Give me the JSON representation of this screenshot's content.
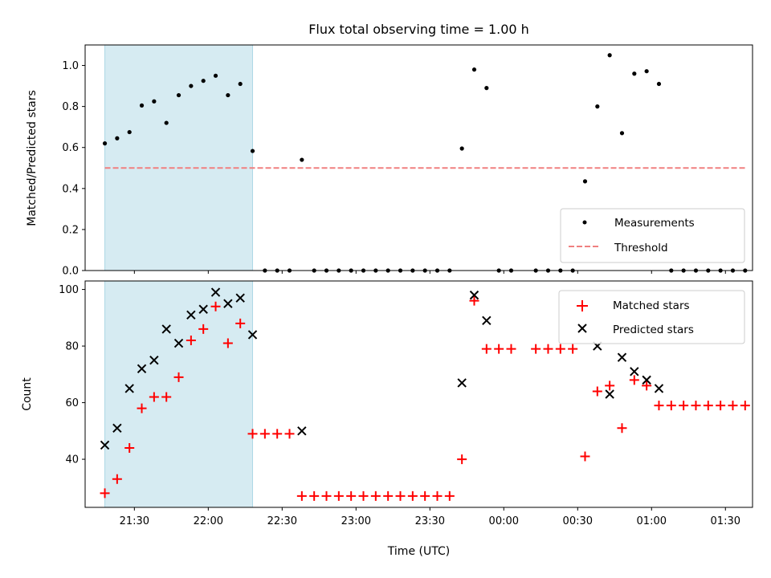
{
  "title": "Flux total observing time = 1.00 h",
  "colors": {
    "shade": "#add8e6",
    "threshold": "#f08080",
    "matched": "#ff0000",
    "predicted": "#000000",
    "measurement": "#000000"
  },
  "chart_data": [
    {
      "type": "scatter",
      "ylabel": "Matched/Predicted stars",
      "ylim": [
        0,
        1.1
      ],
      "xlim": [
        "21:10",
        "01:41"
      ],
      "yticks": [
        "0.0",
        "0.2",
        "0.4",
        "0.6",
        "0.8",
        "1.0"
      ],
      "legend_position": "bottom-right",
      "shaded_interval": [
        "21:18",
        "22:18"
      ],
      "series": [
        {
          "name": "Measurements",
          "points": [
            [
              "21:18",
              0.62
            ],
            [
              "21:23",
              0.645
            ],
            [
              "21:28",
              0.675
            ],
            [
              "21:33",
              0.805
            ],
            [
              "21:38",
              0.825
            ],
            [
              "21:43",
              0.72
            ],
            [
              "21:48",
              0.855
            ],
            [
              "21:53",
              0.9
            ],
            [
              "21:58",
              0.925
            ],
            [
              "22:03",
              0.95
            ],
            [
              "22:08",
              0.855
            ],
            [
              "22:13",
              0.91
            ],
            [
              "22:18",
              0.583
            ],
            [
              "22:23",
              0
            ],
            [
              "22:28",
              0
            ],
            [
              "22:33",
              0
            ],
            [
              "22:38",
              0.54
            ],
            [
              "22:43",
              0
            ],
            [
              "22:48",
              0
            ],
            [
              "22:53",
              0
            ],
            [
              "22:58",
              0
            ],
            [
              "23:03",
              0
            ],
            [
              "23:08",
              0
            ],
            [
              "23:13",
              0
            ],
            [
              "23:18",
              0
            ],
            [
              "23:23",
              0
            ],
            [
              "23:28",
              0
            ],
            [
              "23:33",
              0
            ],
            [
              "23:38",
              0
            ],
            [
              "23:43",
              0.595
            ],
            [
              "23:48",
              0.98
            ],
            [
              "23:53",
              0.89
            ],
            [
              "23:58",
              0
            ],
            [
              "00:03",
              0
            ],
            [
              "00:13",
              0
            ],
            [
              "00:18",
              0
            ],
            [
              "00:23",
              0
            ],
            [
              "00:28",
              0
            ],
            [
              "00:33",
              0.435
            ],
            [
              "00:38",
              0.8
            ],
            [
              "00:43",
              1.05
            ],
            [
              "00:48",
              0.67
            ],
            [
              "00:53",
              0.96
            ],
            [
              "00:58",
              0.972
            ],
            [
              "01:03",
              0.91
            ],
            [
              "01:08",
              0
            ],
            [
              "01:13",
              0
            ],
            [
              "01:18",
              0
            ],
            [
              "01:23",
              0
            ],
            [
              "01:28",
              0
            ],
            [
              "01:33",
              0
            ],
            [
              "01:38",
              0
            ]
          ]
        },
        {
          "name": "Threshold",
          "line": [
            [
              "21:18",
              0.5
            ],
            [
              "01:38",
              0.5
            ]
          ]
        }
      ]
    },
    {
      "type": "scatter",
      "ylabel": "Count",
      "xlabel": "Time (UTC)",
      "ylim": [
        23,
        103
      ],
      "xlim": [
        "21:10",
        "01:41"
      ],
      "yticks": [
        "40",
        "60",
        "80",
        "100"
      ],
      "xticks": [
        "21:30",
        "22:00",
        "22:30",
        "23:00",
        "23:30",
        "00:00",
        "00:30",
        "01:00",
        "01:30"
      ],
      "legend_position": "top-right",
      "shaded_interval": [
        "21:18",
        "22:18"
      ],
      "series": [
        {
          "name": "Matched stars",
          "points": [
            [
              "21:18",
              28
            ],
            [
              "21:23",
              33
            ],
            [
              "21:28",
              44
            ],
            [
              "21:33",
              58
            ],
            [
              "21:38",
              62
            ],
            [
              "21:43",
              62
            ],
            [
              "21:48",
              69
            ],
            [
              "21:53",
              82
            ],
            [
              "21:58",
              86
            ],
            [
              "22:03",
              94
            ],
            [
              "22:08",
              81
            ],
            [
              "22:13",
              88
            ],
            [
              "22:18",
              49
            ],
            [
              "22:23",
              49
            ],
            [
              "22:28",
              49
            ],
            [
              "22:33",
              49
            ],
            [
              "22:38",
              27
            ],
            [
              "22:43",
              27
            ],
            [
              "22:48",
              27
            ],
            [
              "22:53",
              27
            ],
            [
              "22:58",
              27
            ],
            [
              "23:03",
              27
            ],
            [
              "23:08",
              27
            ],
            [
              "23:13",
              27
            ],
            [
              "23:18",
              27
            ],
            [
              "23:23",
              27
            ],
            [
              "23:28",
              27
            ],
            [
              "23:33",
              27
            ],
            [
              "23:38",
              27
            ],
            [
              "23:43",
              40
            ],
            [
              "23:48",
              96
            ],
            [
              "23:53",
              79
            ],
            [
              "23:58",
              79
            ],
            [
              "00:03",
              79
            ],
            [
              "00:13",
              79
            ],
            [
              "00:18",
              79
            ],
            [
              "00:23",
              79
            ],
            [
              "00:28",
              79
            ],
            [
              "00:33",
              41
            ],
            [
              "00:38",
              64
            ],
            [
              "00:43",
              66
            ],
            [
              "00:48",
              51
            ],
            [
              "00:53",
              68
            ],
            [
              "00:58",
              66
            ],
            [
              "01:03",
              59
            ],
            [
              "01:08",
              59
            ],
            [
              "01:13",
              59
            ],
            [
              "01:18",
              59
            ],
            [
              "01:23",
              59
            ],
            [
              "01:28",
              59
            ],
            [
              "01:33",
              59
            ],
            [
              "01:38",
              59
            ]
          ]
        },
        {
          "name": "Predicted stars",
          "points": [
            [
              "21:18",
              45
            ],
            [
              "21:23",
              51
            ],
            [
              "21:28",
              65
            ],
            [
              "21:33",
              72
            ],
            [
              "21:38",
              75
            ],
            [
              "21:43",
              86
            ],
            [
              "21:48",
              81
            ],
            [
              "21:53",
              91
            ],
            [
              "21:58",
              93
            ],
            [
              "22:03",
              99
            ],
            [
              "22:08",
              95
            ],
            [
              "22:13",
              97
            ],
            [
              "22:18",
              84
            ],
            [
              "22:38",
              50
            ],
            [
              "23:43",
              67
            ],
            [
              "23:48",
              98
            ],
            [
              "23:53",
              89
            ],
            [
              "00:38",
              80
            ],
            [
              "00:43",
              63
            ],
            [
              "00:48",
              76
            ],
            [
              "00:53",
              71
            ],
            [
              "00:58",
              68
            ],
            [
              "01:03",
              65
            ]
          ]
        }
      ]
    }
  ]
}
